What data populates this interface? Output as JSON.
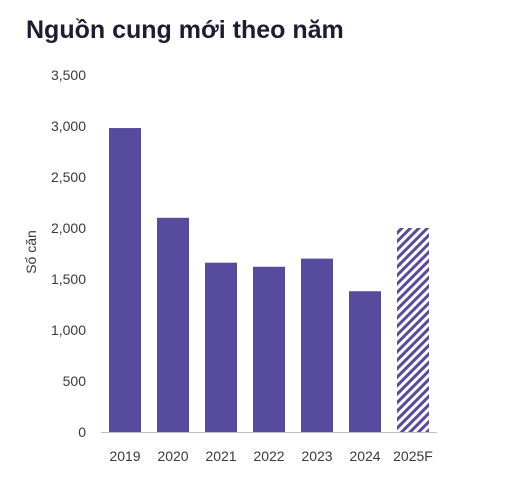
{
  "chart_data": {
    "type": "bar",
    "title": "Nguồn cung mới theo năm",
    "xlabel": "",
    "ylabel": "Số căn",
    "categories": [
      "2019",
      "2020",
      "2021",
      "2022",
      "2023",
      "2024",
      "2025F"
    ],
    "values": [
      2980,
      2100,
      1660,
      1620,
      1700,
      1380,
      2000
    ],
    "forecast": [
      false,
      false,
      false,
      false,
      false,
      false,
      true
    ],
    "ylim": [
      0,
      3500
    ],
    "yticks": [
      0,
      500,
      1000,
      1500,
      2000,
      2500,
      3000,
      3500
    ],
    "ytick_labels": [
      "0",
      "500",
      "1,000",
      "1,500",
      "2,000",
      "2,500",
      "3,000",
      "3,500"
    ],
    "grid": false,
    "bar_color": "#564b9e"
  }
}
